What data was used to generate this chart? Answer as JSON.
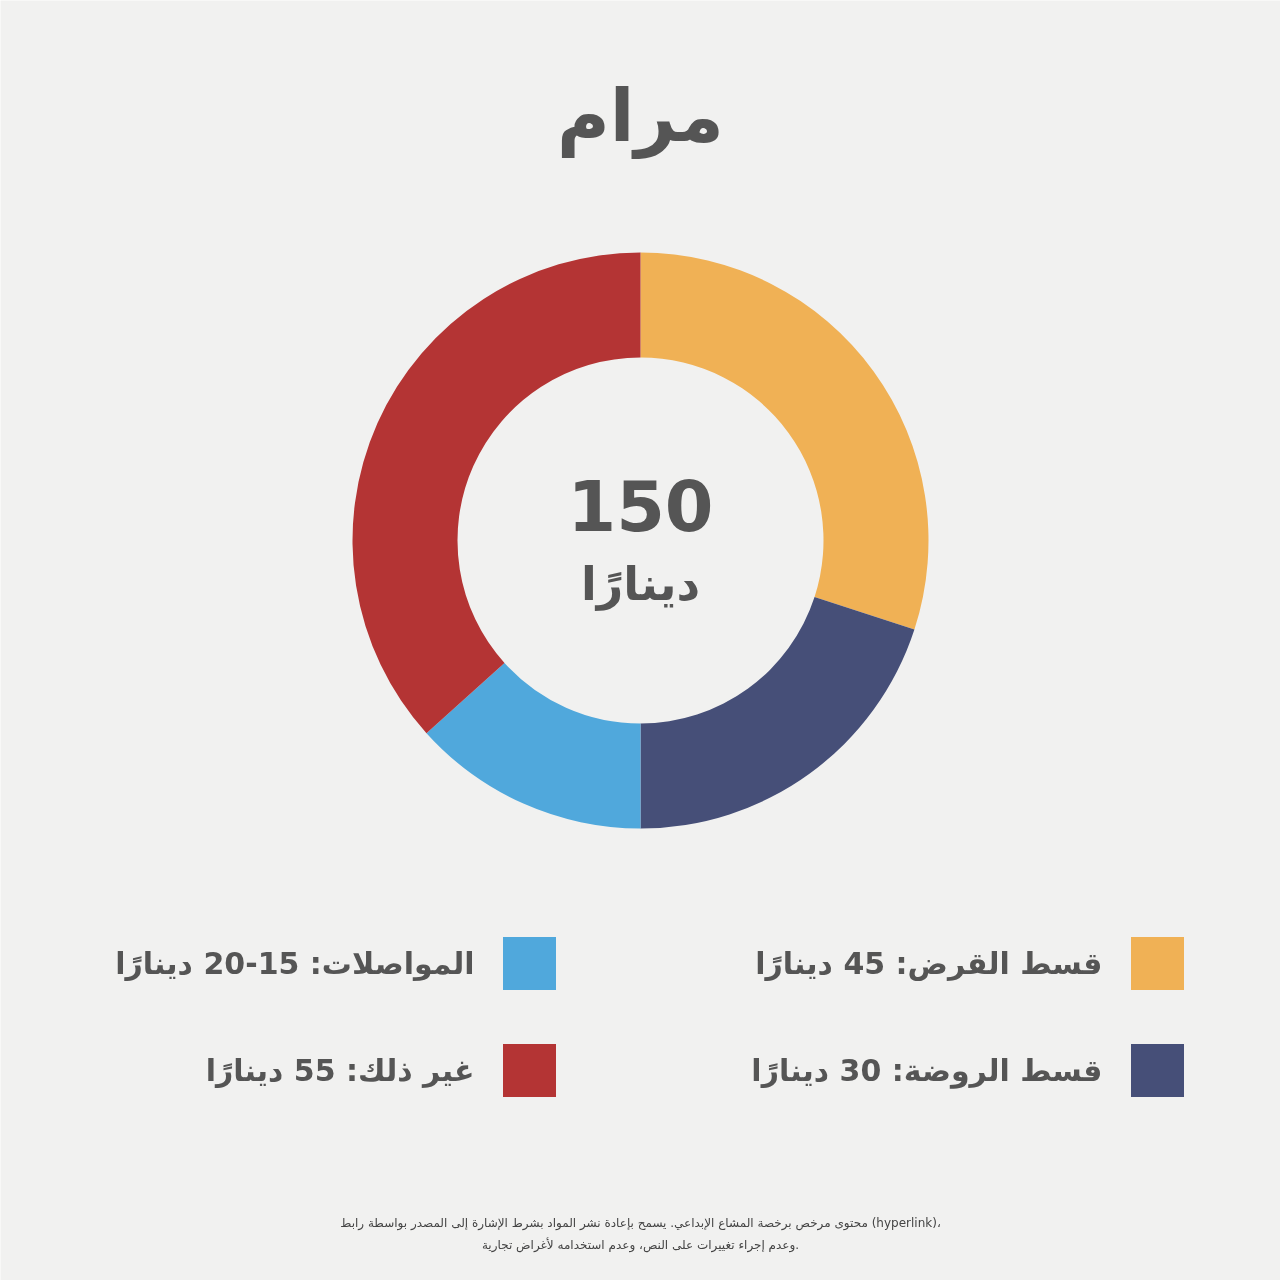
{
  "chart_data": {
    "type": "donut",
    "title": "مرام",
    "categories": [
      "قسط القرض: 45 دينارًا",
      "قسط الروضة: 30 دينارًا",
      "المواصلات: 15-20 دينارًا",
      "غير ذلك: 55 دينارًا"
    ],
    "values": [
      45,
      30,
      20,
      55
    ],
    "colors": [
      "#f0b155",
      "#464f78",
      "#50a8dc",
      "#b43434"
    ],
    "legend": "bottom",
    "annotations": [
      "150",
      "دينارًا",
      "محتوى مرخص برخصة المشاع الإبداعي. يسمح بإعادة نشر المواد بشرط الإشارة إلى المصدر بواسطة رابط (hyperlink)،",
      "وعدم إجراء تغييرات على النص، وعدم استخدامه لأغراض تجارية."
    ]
  }
}
